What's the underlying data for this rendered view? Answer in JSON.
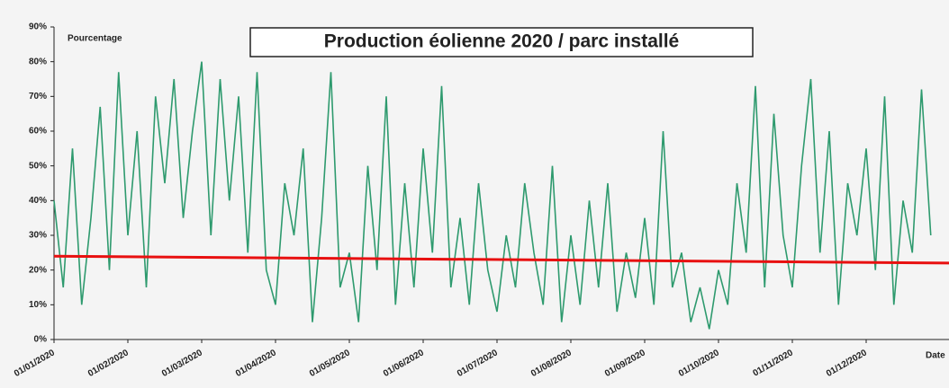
{
  "chart_data": {
    "type": "line",
    "title": "Production éolienne 2020 / parc installé",
    "ylabel": "Pourcentage",
    "xlabel": "Date",
    "categories": [
      "01/01/2020",
      null,
      null,
      null,
      null,
      null,
      null,
      null,
      "01/02/2020",
      null,
      null,
      null,
      null,
      null,
      null,
      null,
      "01/03/2020",
      null,
      null,
      null,
      null,
      null,
      null,
      null,
      "01/04/2020",
      null,
      null,
      null,
      null,
      null,
      null,
      null,
      "01/05/2020",
      null,
      null,
      null,
      null,
      null,
      null,
      null,
      "01/06/2020",
      null,
      null,
      null,
      null,
      null,
      null,
      null,
      "01/07/2020",
      null,
      null,
      null,
      null,
      null,
      null,
      null,
      "01/08/2020",
      null,
      null,
      null,
      null,
      null,
      null,
      null,
      "01/09/2020",
      null,
      null,
      null,
      null,
      null,
      null,
      null,
      "01/10/2020",
      null,
      null,
      null,
      null,
      null,
      null,
      null,
      "01/11/2020",
      null,
      null,
      null,
      null,
      null,
      null,
      null,
      "01/12/2020",
      null,
      null,
      null,
      null,
      null,
      null,
      null
    ],
    "series": [
      {
        "color": "#2e9a6e",
        "values": [
          40,
          15,
          55,
          10,
          35,
          67,
          20,
          77,
          30,
          60,
          15,
          70,
          45,
          75,
          35,
          60,
          80,
          30,
          75,
          40,
          70,
          25,
          77,
          20,
          10,
          45,
          30,
          55,
          5,
          35,
          77,
          15,
          25,
          5,
          50,
          20,
          70,
          10,
          45,
          15,
          55,
          25,
          73,
          15,
          35,
          10,
          45,
          20,
          8,
          30,
          15,
          45,
          25,
          10,
          50,
          5,
          30,
          10,
          40,
          15,
          45,
          8,
          25,
          12,
          35,
          10,
          60,
          15,
          25,
          5,
          15,
          3,
          20,
          10,
          45,
          25,
          73,
          15,
          65,
          30,
          15,
          50,
          75,
          25,
          60,
          10,
          45,
          30,
          55,
          20,
          70,
          10,
          40,
          25,
          72,
          30
        ]
      }
    ],
    "trend_line": {
      "color": "#e81010",
      "values": [
        24,
        22
      ]
    },
    "ylim": [
      0,
      90
    ],
    "yticks": [
      {
        "value": 0,
        "label": "0%"
      },
      {
        "value": 10,
        "label": "10%"
      },
      {
        "value": 20,
        "label": "20%"
      },
      {
        "value": 30,
        "label": "30%"
      },
      {
        "value": 40,
        "label": "40%"
      },
      {
        "value": 50,
        "label": "50%"
      },
      {
        "value": 60,
        "label": "60%"
      },
      {
        "value": 70,
        "label": "70%"
      },
      {
        "value": 80,
        "label": "80%"
      },
      {
        "value": 90,
        "label": "90%"
      }
    ]
  }
}
